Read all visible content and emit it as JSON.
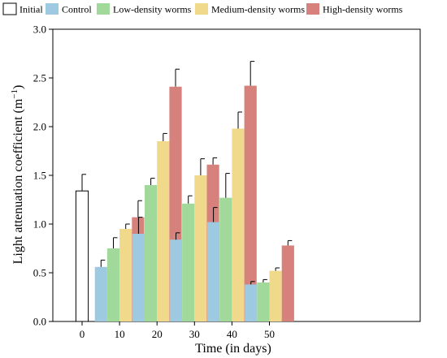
{
  "chart_data": {
    "type": "bar",
    "title": "",
    "xlabel": "Time (in days)",
    "ylabel": "Light attenuation coefficient (m",
    "ylabel_sup": "−1",
    "ylabel_close": ")",
    "ylim": [
      0,
      3.0
    ],
    "yticks": [
      "0.0",
      "0.5",
      "1.0",
      "1.5",
      "2.0",
      "2.5",
      "3.0"
    ],
    "categories": [
      "0",
      "10",
      "20",
      "30",
      "40",
      "50"
    ],
    "legend_position": "top",
    "series": [
      {
        "name": "Initial",
        "color": "#ffffff",
        "values": [
          1.34,
          null,
          null,
          null,
          null,
          null
        ],
        "errors": [
          0.17,
          null,
          null,
          null,
          null,
          null
        ]
      },
      {
        "name": "Control",
        "color": "#9ecae1",
        "values": [
          null,
          0.56,
          0.9,
          0.84,
          1.02,
          0.38
        ],
        "errors": [
          null,
          0.07,
          0.17,
          0.07,
          0.15,
          0.03
        ]
      },
      {
        "name": "Low-density worms",
        "color": "#a1d99b",
        "values": [
          null,
          0.75,
          1.4,
          1.21,
          1.27,
          0.4
        ],
        "errors": [
          null,
          0.11,
          0.07,
          0.08,
          0.25,
          0.03
        ]
      },
      {
        "name": "Medium-density worms",
        "color": "#f0d98a",
        "values": [
          null,
          0.95,
          1.85,
          1.5,
          1.98,
          0.52
        ],
        "errors": [
          null,
          0.05,
          0.08,
          0.17,
          0.17,
          0.03
        ]
      },
      {
        "name": "High-density worms",
        "color": "#d6817c",
        "values": [
          null,
          1.07,
          2.41,
          1.61,
          2.42,
          0.78
        ],
        "errors": [
          null,
          0.17,
          0.18,
          0.07,
          0.25,
          0.05
        ]
      }
    ]
  }
}
